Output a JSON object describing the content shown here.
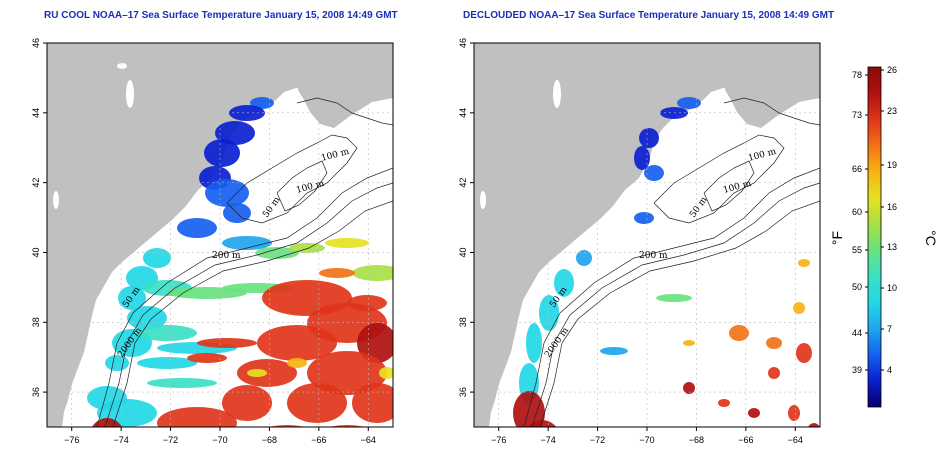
{
  "panels": [
    {
      "title": "RU COOL NOAA–17 Sea Surface Temperature January 15, 2008 14:49 GMT",
      "contour_labels": [
        "100 m",
        "100 m",
        "50 m",
        "200 m",
        "50 m",
        "2000 m"
      ]
    },
    {
      "title": "DECLOUDED NOAA–17 Sea Surface Temperature January 15, 2008 14:49 GMT",
      "contour_labels": [
        "100 m",
        "100 m",
        "50 m",
        "200 m",
        "50 m",
        "2000 m"
      ]
    }
  ],
  "axes": {
    "x_ticks": [
      "−76",
      "−74",
      "−72",
      "−70",
      "−68",
      "−66",
      "−64"
    ],
    "y_ticks": [
      "36",
      "38",
      "40",
      "42",
      "44",
      "46"
    ],
    "xlim": [
      -77,
      -63
    ],
    "ylim": [
      35,
      46
    ]
  },
  "colorbar": {
    "fahrenheit_ticks": [
      "78",
      "73",
      "66",
      "60",
      "55",
      "50",
      "44",
      "39"
    ],
    "celsius_ticks": [
      "26",
      "23",
      "19",
      "16",
      "13",
      "10",
      "7",
      "4"
    ],
    "fahrenheit_label": "°F",
    "celsius_label": "°C",
    "colors": [
      "#08006a",
      "#0a1fd0",
      "#1560f0",
      "#1fa6ee",
      "#22d7e6",
      "#3be0c3",
      "#68e27e",
      "#a8e045",
      "#e6e21e",
      "#f7b314",
      "#f27317",
      "#e0341a",
      "#b01010",
      "#8a0a0a"
    ]
  },
  "colors": {
    "land": "#c0c0c0",
    "title": "#1c2fb8",
    "grid": "#bbbbbb"
  }
}
